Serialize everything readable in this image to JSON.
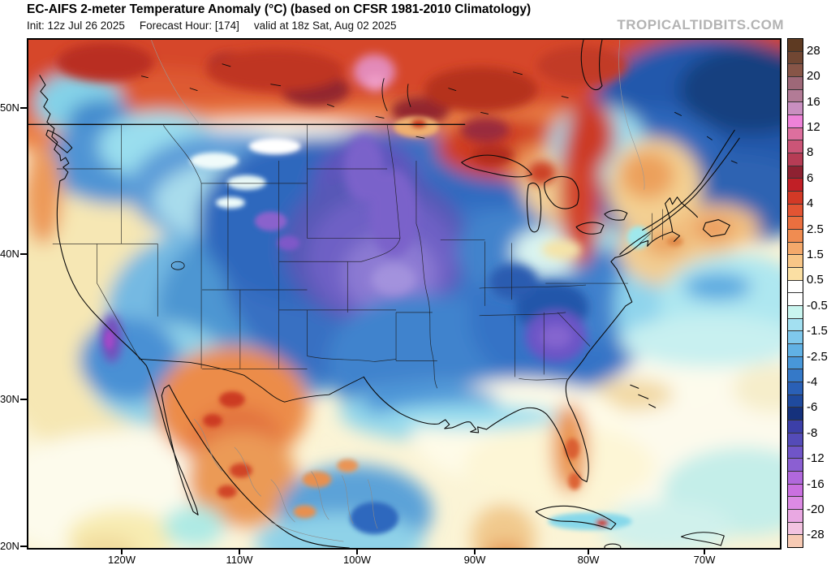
{
  "header": {
    "title": "EC-AIFS 2-meter Temperature Anomaly (°C) (based on CFSR 1981-2010 Climatology)",
    "init": "Init: 12z Jul 26 2025",
    "forecast_hour": "Forecast Hour: [174]",
    "valid": "valid at 18z Sat, Aug 02 2025",
    "watermark": "TROPICALTIDBITS.COM"
  },
  "axes": {
    "lat_labels": [
      "50N",
      "40N",
      "30N",
      "20N"
    ],
    "lon_labels": [
      "120W",
      "110W",
      "100W",
      "90W",
      "80W",
      "70W"
    ]
  },
  "colorbar": {
    "unit": "°C",
    "labels": [
      "28",
      "20",
      "16",
      "12",
      "8",
      "6",
      "4",
      "2.5",
      "1.5",
      "0.5",
      "-0.5",
      "-1.5",
      "-2.5",
      "-4",
      "-6",
      "-8",
      "-12",
      "-16",
      "-20",
      "-28"
    ],
    "colors": [
      "#5e3a22",
      "#714733",
      "#875547",
      "#9e6878",
      "#b27b96",
      "#c98fc0",
      "#ee82d8",
      "#dd6f9e",
      "#cb5577",
      "#b63c55",
      "#8e2131",
      "#c11f26",
      "#d23926",
      "#e25433",
      "#ea6f3f",
      "#f08c51",
      "#f4a96b",
      "#f8c687",
      "#fbdfa3",
      "#ffffff",
      "#ffffff",
      "#c9f5ef",
      "#a3e0f1",
      "#7fc8ec",
      "#61b1e4",
      "#4897d9",
      "#3579c8",
      "#2a60b6",
      "#1f4a9e",
      "#15317c",
      "#3c3fa8",
      "#544bb8",
      "#7055c8",
      "#8b5fd2",
      "#b168dc",
      "#ca70e0",
      "#dc8ae4",
      "#e9a8e2",
      "#f2c3e0",
      "#f7cab4"
    ]
  },
  "chart_data": {
    "type": "heatmap",
    "title": "EC-AIFS 2-meter Temperature Anomaly (°C) (based on CFSR 1981-2010 Climatology)",
    "units": "°C",
    "x_ticks": [
      "120W",
      "110W",
      "100W",
      "90W",
      "80W",
      "70W"
    ],
    "y_ticks": [
      "50N",
      "40N",
      "30N",
      "20N"
    ],
    "scale_boundaries_labeled": [
      28,
      20,
      16,
      12,
      8,
      6,
      4,
      2.5,
      1.5,
      0.5,
      -0.5,
      -1.5,
      -2.5,
      -4,
      -6,
      -8,
      -12,
      -16,
      -20,
      -28
    ],
    "legend_position": "right",
    "notable_features": [
      {
        "region": "Northern Canada band across top of map",
        "anomaly_c": "+4 to +16, locally +20 (pink maxima near 52N 105W)"
      },
      {
        "region": "Quebec / Labrador (top right)",
        "anomaly_c": "-4 to -6"
      },
      {
        "region": "Southern Quebec pocket",
        "anomaly_c": "+1 to +4"
      },
      {
        "region": "Central/Northern Plains (NE, KS, SD, IA)",
        "anomaly_c": "-6 to -12 core"
      },
      {
        "region": "Southeast US (GA / Carolinas)",
        "anomaly_c": "-6 to -10 core"
      },
      {
        "region": "Pacific Northwest / British Columbia coast",
        "anomaly_c": "-2 to -4"
      },
      {
        "region": "Central California coast",
        "anomaly_c": "-8 to -12 streak"
      },
      {
        "region": "Desert Southwest and NW Mexico",
        "anomaly_c": "+2 to +6"
      },
      {
        "region": "New England / Gulf of Maine",
        "anomaly_c": "+1 to +4"
      },
      {
        "region": "Gulf of Mexico and subtropical Atlantic",
        "anomaly_c": "-0.5 to +1"
      },
      {
        "region": "Central Mexico",
        "anomaly_c": "-1 to -4 mottled"
      }
    ]
  }
}
